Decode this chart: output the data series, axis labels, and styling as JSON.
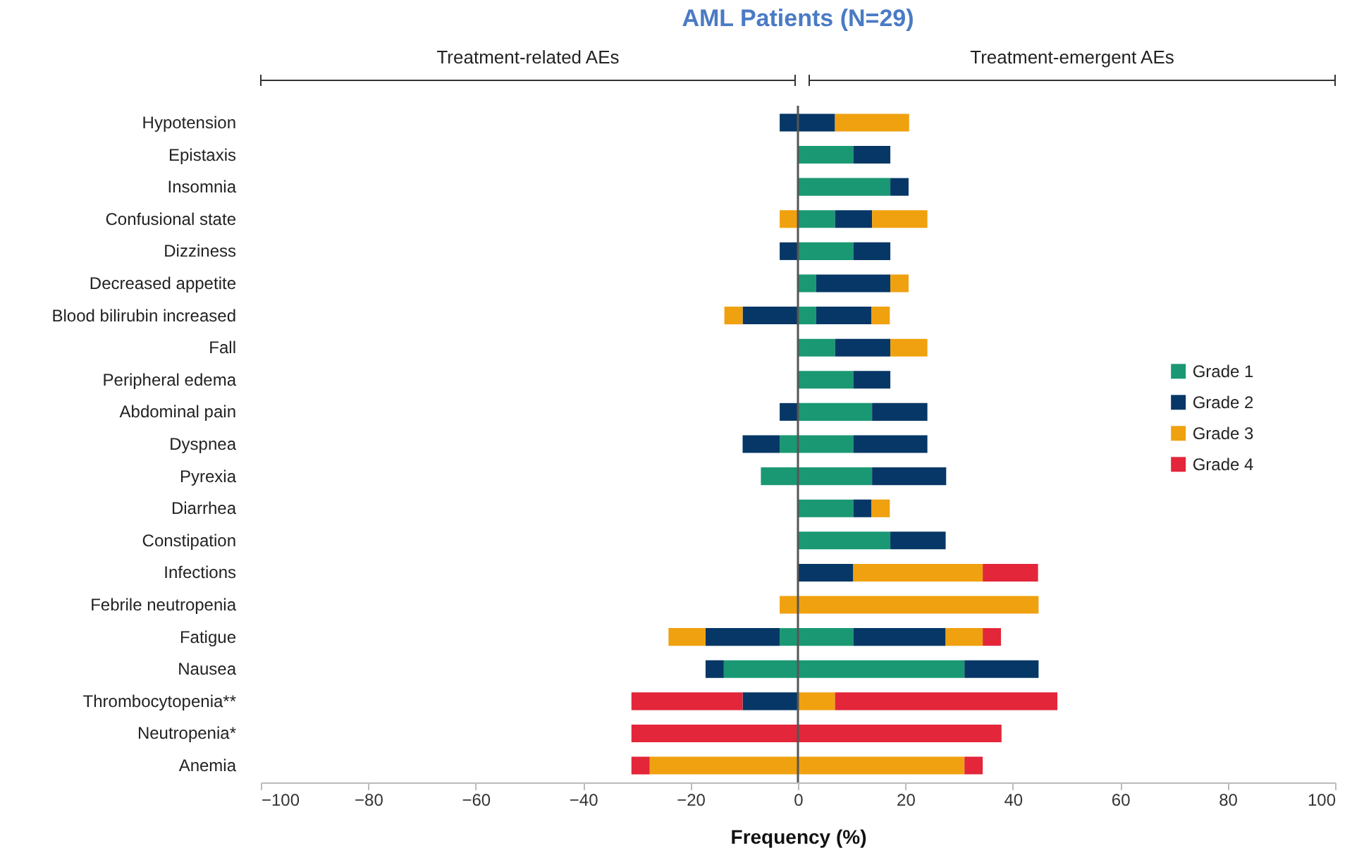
{
  "chart_data": {
    "type": "bar",
    "orientation": "horizontal",
    "stacked": true,
    "title": "AML Patients (N=29)",
    "xlabel": "Frequency (%)",
    "annotations": [
      "Treatment-related AEs",
      "Treatment-emergent AEs"
    ],
    "categories": [
      "Hypotension",
      "Epistaxis",
      "Insomnia",
      "Confusional state",
      "Dizziness",
      "Decreased appetite",
      "Blood bilirubin increased",
      "Fall",
      "Peripheral edema",
      "Abdominal pain",
      "Dyspnea",
      "Pyrexia",
      "Diarrhea",
      "Constipation",
      "Infections",
      "Febrile neutropenia",
      "Fatigue",
      "Nausea",
      "Thrombocytopenia**",
      "Neutropenia*",
      "Anemia"
    ],
    "series": [
      {
        "color": "#1a9873",
        "values": [
          null,
          null,
          null,
          null,
          null,
          null,
          null,
          null,
          null,
          null,
          -3.4,
          -6.9,
          null,
          null,
          null,
          null,
          -3.4,
          -13.8,
          null,
          null,
          null
        ]
      },
      {
        "color": "#063766",
        "values": [
          -3.4,
          null,
          null,
          null,
          -3.4,
          null,
          -10.3,
          null,
          null,
          -3.4,
          -6.9,
          null,
          null,
          null,
          null,
          null,
          -13.8,
          -3.4,
          -10.3,
          null,
          null
        ]
      },
      {
        "color": "#f0a10f",
        "values": [
          null,
          null,
          null,
          -3.4,
          null,
          null,
          -3.4,
          null,
          null,
          null,
          null,
          null,
          null,
          null,
          null,
          -3.4,
          -6.9,
          null,
          null,
          null,
          -27.6
        ]
      },
      {
        "color": "#e3263a",
        "values": [
          null,
          null,
          null,
          null,
          null,
          null,
          null,
          null,
          null,
          null,
          null,
          null,
          null,
          null,
          null,
          null,
          null,
          null,
          -20.7,
          -31.0,
          -3.4
        ]
      },
      {
        "name": "Grade 1",
        "color": "#1a9873",
        "values": [
          null,
          10.3,
          17.2,
          6.9,
          10.3,
          3.4,
          3.4,
          6.9,
          10.3,
          13.8,
          10.3,
          13.8,
          10.3,
          17.2,
          null,
          null,
          10.3,
          31.0,
          null,
          null,
          null
        ]
      },
      {
        "name": "Grade 2",
        "color": "#063766",
        "values": [
          6.9,
          6.9,
          3.4,
          6.9,
          6.9,
          13.8,
          10.3,
          10.3,
          6.9,
          10.3,
          13.8,
          13.8,
          3.4,
          10.3,
          10.3,
          null,
          17.2,
          13.8,
          null,
          null,
          null
        ]
      },
      {
        "name": "Grade 3",
        "color": "#f0a10f",
        "values": [
          13.8,
          null,
          null,
          10.3,
          null,
          3.4,
          3.4,
          6.9,
          null,
          null,
          null,
          null,
          3.4,
          null,
          24.1,
          44.8,
          6.9,
          null,
          6.9,
          null,
          31.0
        ]
      },
      {
        "name": "Grade 4",
        "color": "#e3263a",
        "values": [
          null,
          null,
          null,
          null,
          null,
          null,
          null,
          null,
          null,
          null,
          null,
          null,
          null,
          null,
          10.3,
          null,
          3.4,
          null,
          41.4,
          37.9,
          3.4
        ]
      }
    ],
    "xlim": [
      -100,
      100
    ],
    "xticks": [
      -100,
      -80,
      -60,
      -40,
      -20,
      0,
      20,
      40,
      60,
      80,
      100
    ],
    "ref_lines": [
      {
        "axis": "x",
        "value": 0
      }
    ],
    "legend": "right"
  }
}
